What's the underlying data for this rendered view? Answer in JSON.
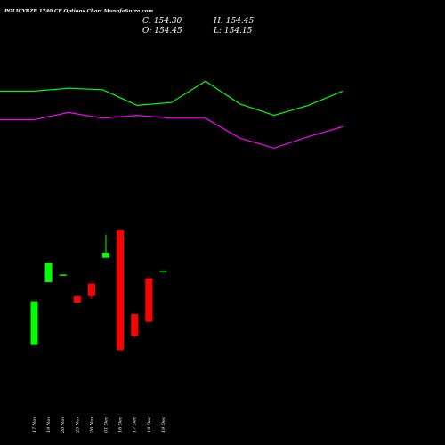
{
  "chart_data": {
    "type": "candlestick",
    "title": "POLICYBZR 1740 CE Options Chart MunafaSutra.com",
    "ohlc_readout": {
      "open": "O: 154.45",
      "high": "H: 154.45",
      "low": "L: 154.15",
      "close": "C: 154.30"
    },
    "categories": [
      "17 Nov",
      "19 Nov",
      "20 Nov",
      "25 Nov",
      "26 Nov",
      "01 Dec",
      "16 Dec",
      "17 Dec",
      "18 Dec",
      "19 Dec"
    ],
    "candles": [
      {
        "open": 10,
        "high": 44,
        "low": 10,
        "close": 44
      },
      {
        "open": 59,
        "high": 74,
        "low": 59,
        "close": 74
      },
      {
        "open": 65,
        "high": 65,
        "low": 65,
        "close": 65
      },
      {
        "open": 48,
        "high": 48,
        "low": 43,
        "close": 43
      },
      {
        "open": 58,
        "high": 58,
        "low": 46,
        "close": 48
      },
      {
        "open": 78,
        "high": 96,
        "low": 78,
        "close": 82
      },
      {
        "open": 100,
        "high": 100,
        "low": 6,
        "close": 6
      },
      {
        "open": 34,
        "high": 34,
        "low": 16,
        "close": 17
      },
      {
        "open": 62,
        "high": 62,
        "low": 28,
        "close": 28
      },
      {
        "open": 68,
        "high": 68,
        "low": 68,
        "close": 68
      }
    ],
    "ylim": [
      0,
      100
    ],
    "overlay_lines": [
      {
        "color": "#00ff00",
        "values": [
          86,
          86,
          88,
          87,
          76,
          78,
          93,
          77,
          69,
          76,
          86
        ]
      },
      {
        "color": "#ff00ff",
        "values": [
          66,
          66,
          71,
          67,
          69,
          67,
          67,
          53,
          46,
          54,
          61
        ]
      }
    ],
    "overlay_ylim": [
      0,
      100
    ],
    "colors": {
      "up": "#00ff00",
      "down": "#ff0000",
      "background": "#000000",
      "text": "#ffffff"
    },
    "grid": false
  }
}
